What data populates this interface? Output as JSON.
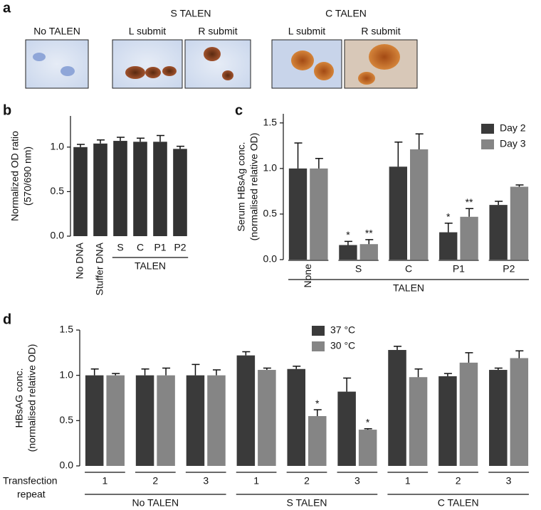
{
  "panel_a": {
    "panel_label": "a",
    "groups": [
      "S TALEN",
      "C TALEN"
    ],
    "images": [
      "No TALEN",
      "L submit",
      "R submit",
      "L submit",
      "R submit"
    ]
  },
  "chart_data": [
    {
      "type": "bar",
      "panel_label": "b",
      "ylabel": [
        "Normalized OD ratio",
        "(570/690 nm)"
      ],
      "categories": [
        "No DNA",
        "Stuffer DNA",
        "S",
        "C",
        "P1",
        "P2"
      ],
      "values": [
        1.0,
        1.04,
        1.07,
        1.06,
        1.06,
        0.98
      ],
      "errors": [
        0.03,
        0.04,
        0.04,
        0.04,
        0.07,
        0.03
      ],
      "color": "#333333",
      "ylim": [
        0,
        1.35
      ],
      "yticks": [
        {
          "value": 0,
          "label": "0.0"
        },
        {
          "value": 0.5,
          "label": "0.5"
        },
        {
          "value": 1,
          "label": "1.0"
        }
      ],
      "groups": [
        {
          "label": "TALEN",
          "from": 2,
          "to": 5
        }
      ],
      "category_underlines": false,
      "grid": false
    },
    {
      "type": "bar",
      "panel_label": "c",
      "ylabel": [
        "Serum HBsAg conc.",
        "(normalised relative OD)"
      ],
      "categories": [
        "None",
        "S",
        "C",
        "P1",
        "P2"
      ],
      "series": [
        {
          "name": "Day 2",
          "color": "#3a3a3a",
          "values": [
            1.0,
            0.16,
            1.02,
            0.3,
            0.6
          ],
          "errors": [
            0.28,
            0.04,
            0.27,
            0.1,
            0.04
          ],
          "annotations": [
            null,
            "*",
            null,
            "*",
            null
          ]
        },
        {
          "name": "Day 3",
          "color": "#858585",
          "values": [
            1.0,
            0.17,
            1.21,
            0.47,
            0.8
          ],
          "errors": [
            0.11,
            0.05,
            0.17,
            0.09,
            0.02
          ],
          "annotations": [
            null,
            "**",
            null,
            "**",
            null
          ]
        }
      ],
      "ylim": [
        0,
        1.6
      ],
      "yticks": [
        {
          "value": 0,
          "label": "0.0"
        },
        {
          "value": 0.5,
          "label": "0.5"
        },
        {
          "value": 1,
          "label": "1.0"
        },
        {
          "value": 1.5,
          "label": "1.5"
        }
      ],
      "groups": [
        {
          "label": "TALEN",
          "from": 0,
          "to": 4
        }
      ],
      "category_underlines": true,
      "legend": "upper right",
      "grid": false
    },
    {
      "type": "bar",
      "panel_label": "d",
      "ylabel": [
        "HBsAG conc.",
        "(normalised relative OD)"
      ],
      "xlabel": [
        "Transfection",
        "repeat"
      ],
      "categories": [
        "1",
        "2",
        "3",
        "1",
        "2",
        "3",
        "1",
        "2",
        "3"
      ],
      "series": [
        {
          "name": "37 °C",
          "color": "#3a3a3a",
          "values": [
            1.0,
            1.0,
            1.0,
            1.22,
            1.07,
            0.82,
            1.28,
            0.99,
            1.06
          ],
          "errors": [
            0.07,
            0.07,
            0.12,
            0.04,
            0.03,
            0.15,
            0.04,
            0.03,
            0.02
          ],
          "annotations": [
            null,
            null,
            null,
            null,
            null,
            null,
            null,
            null,
            null
          ]
        },
        {
          "name": "30 °C",
          "color": "#858585",
          "values": [
            1.0,
            1.0,
            1.0,
            1.06,
            0.55,
            0.4,
            0.98,
            1.14,
            1.19
          ],
          "errors": [
            0.02,
            0.08,
            0.06,
            0.02,
            0.07,
            0.01,
            0.09,
            0.11,
            0.08
          ],
          "annotations": [
            null,
            null,
            null,
            null,
            "*",
            "*",
            null,
            null,
            null
          ]
        }
      ],
      "ylim": [
        0,
        1.5
      ],
      "yticks": [
        {
          "value": 0,
          "label": "0.0"
        },
        {
          "value": 0.5,
          "label": "0.5"
        },
        {
          "value": 1,
          "label": "1.0"
        },
        {
          "value": 1.5,
          "label": "1.5"
        }
      ],
      "groups": [
        {
          "label": "No TALEN",
          "from": 0,
          "to": 2
        },
        {
          "label": "S TALEN",
          "from": 3,
          "to": 5
        },
        {
          "label": "C TALEN",
          "from": 6,
          "to": 8
        }
      ],
      "category_underlines": true,
      "legend": "upper center",
      "grid": false
    }
  ]
}
